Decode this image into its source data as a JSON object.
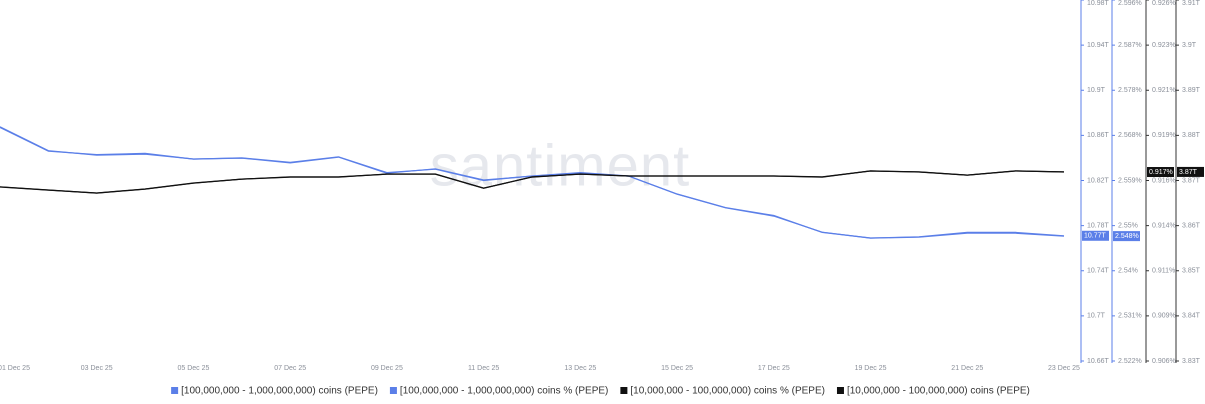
{
  "chart_data": {
    "type": "line",
    "watermark": "santiment",
    "categories": [
      "01 Dec 25",
      null,
      "03 Dec 25",
      null,
      "05 Dec 25",
      null,
      "07 Dec 25",
      null,
      "09 Dec 25",
      null,
      "11 Dec 25",
      null,
      "13 Dec 25",
      null,
      "15 Dec 25",
      null,
      "17 Dec 25",
      null,
      "19 Dec 25",
      null,
      "21 Dec 25",
      null,
      "23 Dec 25"
    ],
    "ylim": [
      10.66,
      10.98
    ],
    "yticks": [
      {
        "value": 10.98,
        "label": "10.98T"
      },
      {
        "value": 10.94,
        "label": "10.94T"
      },
      {
        "value": 10.9,
        "label": "10.9T"
      },
      {
        "value": 10.86,
        "label": "10.86T"
      },
      {
        "value": 10.82,
        "label": "10.82T"
      },
      {
        "value": 10.78,
        "label": "10.78T"
      },
      {
        "value": 10.74,
        "label": "10.74T"
      },
      {
        "value": 10.7,
        "label": "10.7T"
      },
      {
        "value": 10.66,
        "label": "10.66T"
      }
    ],
    "y2lim": [
      2.522,
      2.596
    ],
    "y2ticks": [
      {
        "value": 2.596,
        "label": "2.596%"
      },
      {
        "value": 2.58675,
        "label": "2.587%"
      },
      {
        "value": 2.5775,
        "label": "2.578%"
      },
      {
        "value": 2.56825,
        "label": "2.568%"
      },
      {
        "value": 2.559,
        "label": "2.559%"
      },
      {
        "value": 2.54975,
        "label": "2.55%"
      },
      {
        "value": 2.5405,
        "label": "2.54%"
      },
      {
        "value": 2.53125,
        "label": "2.531%"
      },
      {
        "value": 2.522,
        "label": "2.522%"
      }
    ],
    "y3lim": [
      0.906,
      0.926
    ],
    "y3ticks": [
      {
        "value": 0.926,
        "label": "0.926%"
      },
      {
        "value": 0.9235,
        "label": "0.923%"
      },
      {
        "value": 0.921,
        "label": "0.921%"
      },
      {
        "value": 0.9185,
        "label": "0.919%"
      },
      {
        "value": 0.916,
        "label": "0.916%"
      },
      {
        "value": 0.9135,
        "label": "0.914%"
      },
      {
        "value": 0.911,
        "label": "0.911%"
      },
      {
        "value": 0.9085,
        "label": "0.909%"
      },
      {
        "value": 0.906,
        "label": "0.906%"
      }
    ],
    "y4lim": [
      3.83,
      3.91
    ],
    "y4ticks": [
      {
        "value": 3.91,
        "label": "3.91T"
      },
      {
        "value": 3.9,
        "label": "3.9T"
      },
      {
        "value": 3.89,
        "label": "3.89T"
      },
      {
        "value": 3.88,
        "label": "3.88T"
      },
      {
        "value": 3.87,
        "label": "3.87T"
      },
      {
        "value": 3.86,
        "label": "3.86T"
      },
      {
        "value": 3.85,
        "label": "3.85T"
      },
      {
        "value": 3.84,
        "label": "3.84T"
      },
      {
        "value": 3.83,
        "label": "3.83T"
      }
    ],
    "series": [
      {
        "name": "[100,000,000 - 1,000,000,000) coins (PEPE)",
        "color": "#5b7fe8",
        "axis": "y",
        "end_label": "10.77T",
        "values": [
          10.867,
          10.846,
          10.843,
          10.844,
          10.839,
          10.84,
          10.836,
          10.841,
          10.827,
          10.83,
          10.82,
          10.824,
          10.827,
          10.824,
          10.808,
          10.796,
          10.789,
          10.774,
          10.769,
          10.77,
          10.774,
          10.774,
          10.771
        ]
      },
      {
        "name": "[100,000,000 - 1,000,000,000) coins % (PEPE)",
        "color": "#5b7fe8",
        "axis": "y2",
        "end_label": "2.548%",
        "values": [
          2.57,
          2.5651,
          2.5642,
          2.5644,
          2.5634,
          2.5636,
          2.5626,
          2.5638,
          2.5605,
          2.5614,
          2.5591,
          2.5599,
          2.5605,
          2.5599,
          2.5562,
          2.5534,
          2.5517,
          2.5484,
          2.5472,
          2.5474,
          2.5482,
          2.5482,
          2.5476
        ]
      },
      {
        "name": "[10,000,000 - 100,000,000) coins % (PEPE)",
        "color": "#111111",
        "axis": "y3",
        "end_label": "0.917%",
        "values": [
          0.91564,
          0.91547,
          0.91531,
          0.91553,
          0.91586,
          0.91608,
          0.91619,
          0.91619,
          0.91636,
          0.91636,
          0.91558,
          0.91619,
          0.91636,
          0.91625,
          0.91625,
          0.91625,
          0.91625,
          0.91619,
          0.91653,
          0.91647,
          0.9163,
          0.91653,
          0.91647
        ]
      },
      {
        "name": "[10,000,000 - 100,000,000) coins (PEPE)",
        "color": "#111111",
        "axis": "y4",
        "end_label": "3.87T",
        "values": [
          3.8686,
          3.8679,
          3.8672,
          3.8681,
          3.8694,
          3.8703,
          3.8708,
          3.8708,
          3.8714,
          3.8714,
          3.8683,
          3.8708,
          3.8714,
          3.871,
          3.871,
          3.871,
          3.871,
          3.8708,
          3.8721,
          3.8719,
          3.8712,
          3.8721,
          3.8719
        ]
      }
    ]
  }
}
